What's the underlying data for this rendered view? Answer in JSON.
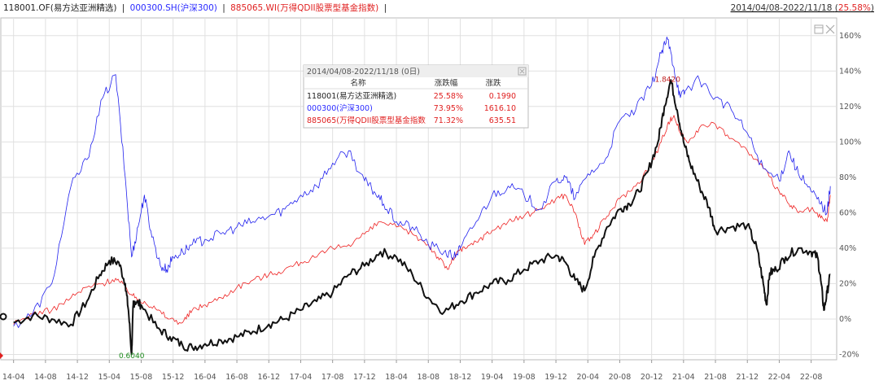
{
  "header": {
    "series_labels": [
      {
        "text": "118001.OF(易方达亚洲精选)",
        "color": "#222222"
      },
      {
        "text": "000300.SH(沪深300)",
        "color": "#2a2aff"
      },
      {
        "text": "885065.WI(万得QDII股票型基金指数)",
        "color": "#e02020"
      }
    ],
    "separator": "|",
    "range_text": "2014/04/08-2022/11/18",
    "range_change": "25.58%"
  },
  "tooltip": {
    "title": "2014/04/08-2022/11/18 (0日)",
    "columns": [
      "名称",
      "涨跌幅",
      "涨跌"
    ],
    "rows": [
      {
        "name": "118001(易方达亚洲精选)",
        "pct": "25.58%",
        "chg": "0.1990",
        "color": "#222222"
      },
      {
        "name": "000300(沪深300)",
        "pct": "73.95%",
        "chg": "1616.10",
        "color": "#2a2aff"
      },
      {
        "name": "885065(万得QDII股票型基金指数",
        "pct": "71.32%",
        "chg": "635.51",
        "color": "#e02020"
      }
    ],
    "pct_color": "#e02020"
  },
  "colors": {
    "fund": "#111111",
    "csi300": "#2222ee",
    "qdii": "#ee2222",
    "grid": "#e0e0e0",
    "axis": "#bbbbbb"
  },
  "chart_data": {
    "type": "line",
    "x_ticks": [
      "14-04",
      "14-08",
      "14-12",
      "15-04",
      "15-08",
      "15-12",
      "16-04",
      "16-08",
      "16-12",
      "17-04",
      "17-08",
      "17-12",
      "18-04",
      "18-08",
      "18-12",
      "19-04",
      "19-08",
      "19-12",
      "20-04",
      "20-08",
      "20-12",
      "21-04",
      "21-08",
      "21-12",
      "22-04",
      "22-08"
    ],
    "y_ticks": [
      "-20%",
      "0%",
      "20%",
      "40%",
      "60%",
      "80%",
      "100%",
      "120%",
      "140%",
      "160%"
    ],
    "ylim": [
      -20,
      160
    ],
    "grid": true,
    "annotations": [
      {
        "text": "1.8420",
        "x": 20.5,
        "y": 134,
        "color": "#c02020"
      },
      {
        "text": "0.6040",
        "x": 3.7,
        "y": -22,
        "color": "#1a8a1a"
      }
    ],
    "series": [
      {
        "name": "118001.OF(易方达亚洲精选)",
        "color": "#111111",
        "x": [
          0,
          0.6,
          1.2,
          1.8,
          2.3,
          2.7,
          3.0,
          3.3,
          3.5,
          3.6,
          3.7,
          3.75,
          3.8,
          4.0,
          4.5,
          4.9,
          5.3,
          5.6,
          6.0,
          6.5,
          7.0,
          7.5,
          8.0,
          8.5,
          9.0,
          9.5,
          10.0,
          10.5,
          11.0,
          11.5,
          12.0,
          12.5,
          13.0,
          13.5,
          14.0,
          14.5,
          15.0,
          15.5,
          16.0,
          16.5,
          17.0,
          17.3,
          17.6,
          17.9,
          18.2,
          18.6,
          19.0,
          19.3,
          19.6,
          19.9,
          20.2,
          20.4,
          20.6,
          20.8,
          21.0,
          21.2,
          21.5,
          21.8,
          22.0,
          22.5,
          23.0,
          23.3,
          23.5,
          23.6,
          23.7,
          23.9,
          24.2,
          24.6,
          25.0,
          25.2,
          25.3,
          25.4,
          25.5,
          25.6
        ],
        "y": [
          -2,
          2,
          0,
          -3,
          10,
          25,
          33,
          32,
          20,
          5,
          -20,
          8,
          10,
          8,
          -5,
          -10,
          -15,
          -16,
          -14,
          -12,
          -10,
          -7,
          -3,
          0,
          5,
          10,
          15,
          25,
          30,
          38,
          35,
          25,
          12,
          4,
          10,
          15,
          20,
          22,
          28,
          33,
          36,
          32,
          22,
          16,
          35,
          52,
          62,
          65,
          72,
          84,
          100,
          120,
          135,
          118,
          100,
          88,
          75,
          63,
          50,
          52,
          53,
          40,
          20,
          8,
          26,
          28,
          35,
          40,
          38,
          35,
          22,
          5,
          15,
          25
        ]
      },
      {
        "name": "000300.SH(沪深300)",
        "color": "#2222ee",
        "x": [
          0,
          0.6,
          1.2,
          1.8,
          2.3,
          2.8,
          3.2,
          3.5,
          3.7,
          3.9,
          4.1,
          4.3,
          4.6,
          4.8,
          5.0,
          5.3,
          5.6,
          6.0,
          6.5,
          7.0,
          7.5,
          8.0,
          8.5,
          9.0,
          9.5,
          10.0,
          10.5,
          11.0,
          11.3,
          11.6,
          12.0,
          12.5,
          13.0,
          13.5,
          13.8,
          14.0,
          14.5,
          15.0,
          15.5,
          16.0,
          16.5,
          17.0,
          17.3,
          17.6,
          18.0,
          18.5,
          19.0,
          19.5,
          20.0,
          20.3,
          20.5,
          20.7,
          20.9,
          21.1,
          21.5,
          22.0,
          22.5,
          23.0,
          23.5,
          24.0,
          24.3,
          24.6,
          25.0,
          25.3,
          25.5,
          25.6
        ],
        "y": [
          -4,
          3,
          20,
          75,
          90,
          125,
          138,
          80,
          35,
          52,
          70,
          50,
          30,
          28,
          35,
          38,
          42,
          45,
          48,
          52,
          55,
          58,
          62,
          70,
          75,
          88,
          95,
          78,
          72,
          65,
          55,
          52,
          42,
          38,
          35,
          40,
          55,
          70,
          75,
          70,
          62,
          78,
          80,
          68,
          82,
          88,
          112,
          118,
          132,
          150,
          158,
          142,
          125,
          130,
          135,
          125,
          118,
          105,
          85,
          78,
          95,
          82,
          72,
          65,
          60,
          75
        ]
      },
      {
        "name": "885065.WI(万得QDII股票型基金指数)",
        "color": "#ee2222",
        "x": [
          0,
          0.6,
          1.2,
          1.8,
          2.3,
          2.8,
          3.2,
          3.5,
          3.8,
          4.1,
          4.5,
          4.9,
          5.3,
          5.6,
          6.0,
          6.5,
          7.0,
          7.5,
          8.0,
          8.5,
          9.0,
          9.5,
          10.0,
          10.5,
          11.0,
          11.5,
          12.0,
          12.5,
          13.0,
          13.3,
          13.6,
          13.9,
          14.2,
          14.6,
          15.0,
          15.5,
          16.0,
          16.5,
          17.0,
          17.3,
          17.6,
          17.9,
          18.2,
          18.6,
          19.0,
          19.5,
          20.0,
          20.3,
          20.5,
          20.7,
          20.9,
          21.1,
          21.5,
          22.0,
          22.5,
          23.0,
          23.5,
          24.0,
          24.3,
          24.6,
          25.0,
          25.3,
          25.5,
          25.6
        ],
        "y": [
          -3,
          3,
          5,
          12,
          18,
          20,
          23,
          18,
          12,
          10,
          5,
          0,
          -2,
          5,
          8,
          12,
          18,
          22,
          25,
          28,
          32,
          35,
          40,
          42,
          48,
          55,
          52,
          48,
          42,
          35,
          28,
          38,
          40,
          45,
          50,
          55,
          58,
          62,
          68,
          70,
          60,
          42,
          48,
          58,
          68,
          75,
          88,
          100,
          110,
          115,
          105,
          100,
          108,
          110,
          102,
          95,
          85,
          72,
          65,
          60,
          62,
          57,
          55,
          70
        ]
      }
    ]
  }
}
